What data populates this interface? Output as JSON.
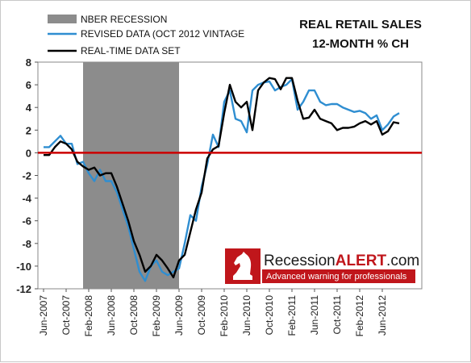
{
  "chart_data": {
    "type": "line",
    "title": [
      "REAL RETAIL SALES",
      "12-MONTH % CH"
    ],
    "xlabel": "",
    "ylabel": "",
    "ylim": [
      -12,
      8
    ],
    "yticks": [
      8,
      6,
      4,
      2,
      0,
      -2,
      -4,
      -6,
      -8,
      -10,
      -12
    ],
    "x_range": [
      "2007-05",
      "2013-01"
    ],
    "x_tick_labels": [
      "Jun-2007",
      "Oct-2007",
      "Feb-2008",
      "Jun-2008",
      "Oct-2008",
      "Feb-2009",
      "Jun-2009",
      "Oct-2009",
      "Feb-2010",
      "Jun-2010",
      "Oct-2010",
      "Feb-2011",
      "Jun-2011",
      "Oct-2011",
      "Feb-2012",
      "Jun-2012"
    ],
    "x_tick_dates": [
      "2007-06",
      "2007-10",
      "2008-02",
      "2008-06",
      "2008-10",
      "2009-02",
      "2009-06",
      "2009-10",
      "2010-02",
      "2010-06",
      "2010-10",
      "2011-02",
      "2011-06",
      "2011-10",
      "2012-02",
      "2012-06"
    ],
    "recession": {
      "label": "NBER RECESSION",
      "start": "2008-01",
      "end": "2009-06",
      "color": "#8c8c8c"
    },
    "zero_line_color": "#cc0000",
    "legend_placement": "top-left",
    "series": [
      {
        "name": "REVISED DATA (OCT 2012 VINTAGE",
        "color": "#2f8ed1",
        "x": [
          "2007-06",
          "2007-07",
          "2007-08",
          "2007-09",
          "2007-10",
          "2007-11",
          "2007-12",
          "2008-01",
          "2008-02",
          "2008-03",
          "2008-04",
          "2008-05",
          "2008-06",
          "2008-07",
          "2008-08",
          "2008-09",
          "2008-10",
          "2008-11",
          "2008-12",
          "2009-01",
          "2009-02",
          "2009-03",
          "2009-04",
          "2009-05",
          "2009-06",
          "2009-07",
          "2009-08",
          "2009-09",
          "2009-10",
          "2009-11",
          "2009-12",
          "2010-01",
          "2010-02",
          "2010-03",
          "2010-04",
          "2010-05",
          "2010-06",
          "2010-07",
          "2010-08",
          "2010-09",
          "2010-10",
          "2010-11",
          "2010-12",
          "2011-01",
          "2011-02",
          "2011-03",
          "2011-04",
          "2011-05",
          "2011-06",
          "2011-07",
          "2011-08",
          "2011-09",
          "2011-10",
          "2011-11",
          "2011-12",
          "2012-01",
          "2012-02",
          "2012-03",
          "2012-04",
          "2012-05",
          "2012-06",
          "2012-07",
          "2012-08",
          "2012-09"
        ],
        "values": [
          0.5,
          0.5,
          1.0,
          1.5,
          0.8,
          0.8,
          -1.0,
          -0.8,
          -1.8,
          -2.5,
          -1.5,
          -2.5,
          -2.5,
          -3.5,
          -5.0,
          -6.5,
          -8.5,
          -10.5,
          -11.3,
          -10.0,
          -9.5,
          -10.5,
          -10.8,
          -10.5,
          -10.2,
          -8.0,
          -5.5,
          -6.0,
          -3.0,
          -1.0,
          1.6,
          0.5,
          4.5,
          5.5,
          3.0,
          2.8,
          1.8,
          5.5,
          6.0,
          6.2,
          6.3,
          5.5,
          5.8,
          6.0,
          6.5,
          3.8,
          4.5,
          5.5,
          5.5,
          4.5,
          4.2,
          4.3,
          4.3,
          4.0,
          3.8,
          3.6,
          3.7,
          3.5,
          3.0,
          3.3,
          2.0,
          2.5,
          3.2,
          3.5
        ]
      },
      {
        "name": "REAL-TIME DATA SET",
        "color": "#000000",
        "x": [
          "2007-06",
          "2007-07",
          "2007-08",
          "2007-09",
          "2007-10",
          "2007-11",
          "2007-12",
          "2008-01",
          "2008-02",
          "2008-03",
          "2008-04",
          "2008-05",
          "2008-06",
          "2008-07",
          "2008-08",
          "2008-09",
          "2008-10",
          "2008-11",
          "2008-12",
          "2009-01",
          "2009-02",
          "2009-03",
          "2009-04",
          "2009-05",
          "2009-06",
          "2009-07",
          "2009-08",
          "2009-09",
          "2009-10",
          "2009-11",
          "2009-12",
          "2010-01",
          "2010-02",
          "2010-03",
          "2010-04",
          "2010-05",
          "2010-06",
          "2010-07",
          "2010-08",
          "2010-09",
          "2010-10",
          "2010-11",
          "2010-12",
          "2011-01",
          "2011-02",
          "2011-03",
          "2011-04",
          "2011-05",
          "2011-06",
          "2011-07",
          "2011-08",
          "2011-09",
          "2011-10",
          "2011-11",
          "2011-12",
          "2012-01",
          "2012-02",
          "2012-03",
          "2012-04",
          "2012-05",
          "2012-06",
          "2012-07",
          "2012-08",
          "2012-09"
        ],
        "values": [
          -0.2,
          -0.2,
          0.5,
          1.0,
          0.8,
          0.3,
          -0.8,
          -1.2,
          -1.5,
          -1.3,
          -2.0,
          -1.8,
          -1.8,
          -3.0,
          -4.5,
          -6.0,
          -7.8,
          -9.0,
          -10.5,
          -10.0,
          -9.0,
          -9.5,
          -10.2,
          -11.0,
          -9.5,
          -9.0,
          -7.0,
          -5.0,
          -3.5,
          -0.5,
          0.3,
          0.6,
          3.5,
          6.0,
          4.5,
          4.0,
          4.5,
          2.0,
          5.5,
          6.2,
          6.6,
          6.5,
          5.6,
          6.6,
          6.6,
          4.6,
          3.0,
          3.1,
          3.8,
          3.0,
          2.8,
          2.6,
          2.0,
          2.2,
          2.2,
          2.3,
          2.6,
          2.8,
          2.5,
          2.8,
          1.6,
          1.9,
          2.7,
          2.6
        ]
      }
    ]
  },
  "brand": {
    "name_main": "Recession",
    "name_accent": "ALERT",
    "name_suffix": ".com",
    "tagline": "Advanced warning for professionals"
  }
}
